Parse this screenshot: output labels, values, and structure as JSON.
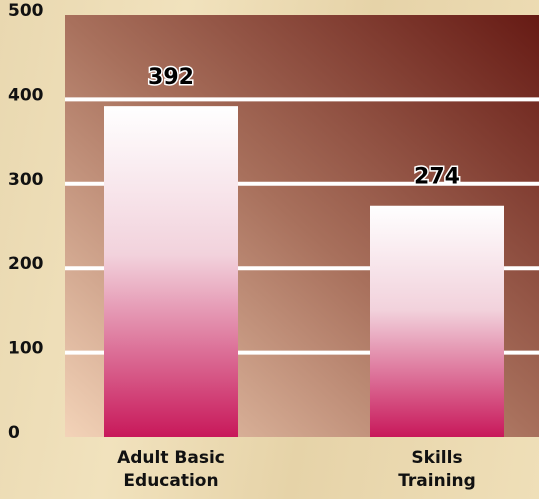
{
  "chart_data": {
    "type": "bar",
    "categories": [
      "Adult Basic Education",
      "Skills Training"
    ],
    "values": [
      392,
      274
    ],
    "color": "#c8185a",
    "ylim": [
      0,
      500
    ],
    "yticks": [
      0,
      100,
      200,
      300,
      400,
      500
    ],
    "grid": true
  }
}
